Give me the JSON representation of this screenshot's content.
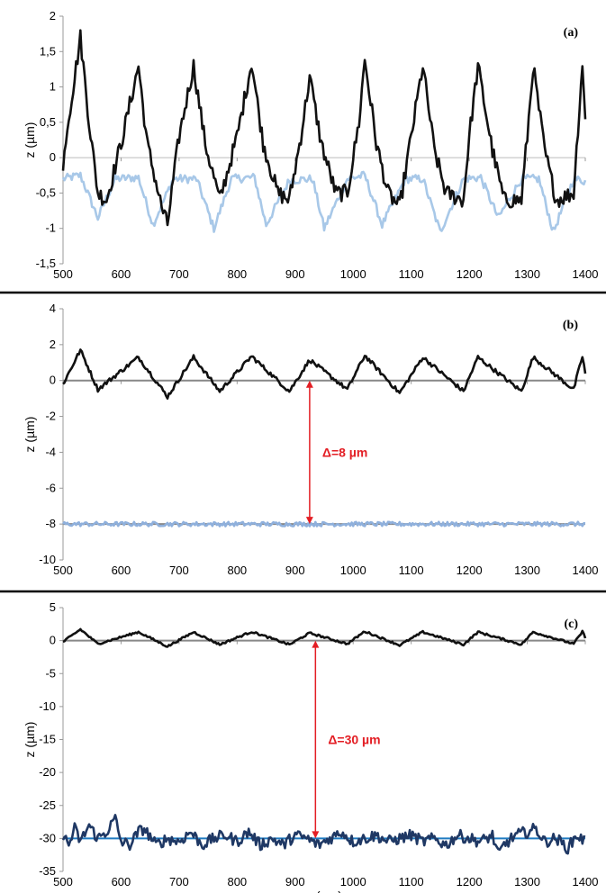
{
  "chart_data": [
    {
      "type": "line",
      "panel_label": "(a)",
      "ylabel": "z (µm)",
      "xlabel": "",
      "xlim": [
        500,
        1400
      ],
      "ylim": [
        -1.5,
        2
      ],
      "x_ticks": [
        "500",
        "600",
        "700",
        "800",
        "900",
        "1000",
        "1100",
        "1200",
        "1300",
        "1400"
      ],
      "y_ticks": [
        "-1,5",
        "-1",
        "-0,5",
        "0",
        "0,5",
        "1",
        "1,5",
        "2"
      ],
      "y_tick_values": [
        -1.5,
        -1,
        -0.5,
        0,
        0.5,
        1,
        1.5,
        2
      ],
      "grid": false,
      "series": [
        {
          "color": "#a8c8e8",
          "kind": "profile",
          "period": 97.5,
          "x0": 530,
          "base": -0.32,
          "peak_amp": 0.0,
          "valley_amp": 0.62,
          "valley_offset": 50,
          "noise": 0.06,
          "points": [
            [
              500,
              -0.3
            ],
            [
              530,
              -0.25
            ],
            [
              560,
              -0.85
            ],
            [
              590,
              -0.3
            ],
            [
              630,
              -0.28
            ],
            [
              655,
              -0.95
            ],
            [
              690,
              -0.3
            ],
            [
              730,
              -0.3
            ],
            [
              760,
              -1.0
            ],
            [
              790,
              -0.3
            ],
            [
              830,
              -0.28
            ],
            [
              850,
              -0.95
            ],
            [
              890,
              -0.32
            ],
            [
              930,
              -0.3
            ],
            [
              950,
              -1.0
            ],
            [
              990,
              -0.3
            ],
            [
              1020,
              -0.25
            ],
            [
              1050,
              -0.95
            ],
            [
              1090,
              -0.3
            ],
            [
              1120,
              -0.3
            ],
            [
              1150,
              -1.05
            ],
            [
              1190,
              -0.3
            ],
            [
              1220,
              -0.28
            ],
            [
              1250,
              -0.85
            ],
            [
              1290,
              -0.3
            ],
            [
              1320,
              -0.3
            ],
            [
              1345,
              -1.05
            ],
            [
              1380,
              -0.3
            ],
            [
              1400,
              -0.33
            ]
          ]
        },
        {
          "color": "#111111",
          "kind": "profile",
          "period": 97.5,
          "x0": 530,
          "base": -0.3,
          "peak_amp": 1.65,
          "valley_amp": 0.45,
          "valley_offset": 45,
          "noise": 0.12,
          "points": [
            [
              500,
              -0.2
            ],
            [
              505,
              0.3
            ],
            [
              530,
              1.7
            ],
            [
              545,
              0.5
            ],
            [
              560,
              -0.5
            ],
            [
              575,
              -0.6
            ],
            [
              600,
              0.2
            ],
            [
              630,
              1.3
            ],
            [
              645,
              0.2
            ],
            [
              670,
              -0.7
            ],
            [
              680,
              -0.95
            ],
            [
              700,
              0.3
            ],
            [
              725,
              1.3
            ],
            [
              745,
              0.2
            ],
            [
              770,
              -0.6
            ],
            [
              800,
              0.3
            ],
            [
              825,
              1.35
            ],
            [
              845,
              0.2
            ],
            [
              870,
              -0.5
            ],
            [
              890,
              -0.6
            ],
            [
              910,
              0.3
            ],
            [
              925,
              1.15
            ],
            [
              945,
              0.2
            ],
            [
              970,
              -0.5
            ],
            [
              990,
              -0.5
            ],
            [
              1010,
              0.5
            ],
            [
              1020,
              1.4
            ],
            [
              1040,
              0.2
            ],
            [
              1060,
              -0.5
            ],
            [
              1080,
              -0.7
            ],
            [
              1100,
              0.3
            ],
            [
              1120,
              1.3
            ],
            [
              1140,
              0.1
            ],
            [
              1160,
              -0.5
            ],
            [
              1190,
              -0.6
            ],
            [
              1200,
              0.3
            ],
            [
              1215,
              1.3
            ],
            [
              1240,
              0.1
            ],
            [
              1260,
              -0.6
            ],
            [
              1290,
              -0.6
            ],
            [
              1300,
              0.3
            ],
            [
              1310,
              1.3
            ],
            [
              1330,
              0.1
            ],
            [
              1350,
              -0.6
            ],
            [
              1380,
              -0.5
            ],
            [
              1395,
              1.35
            ],
            [
              1400,
              0.5
            ]
          ]
        }
      ]
    },
    {
      "type": "line",
      "panel_label": "(b)",
      "ylabel": "z (µm)",
      "xlabel": "",
      "xlim": [
        500,
        1400
      ],
      "ylim": [
        -10,
        4
      ],
      "x_ticks": [
        "500",
        "600",
        "700",
        "800",
        "900",
        "1000",
        "1100",
        "1200",
        "1300",
        "1400"
      ],
      "y_ticks": [
        "-10",
        "-8",
        "-6",
        "-4",
        "-2",
        "0",
        "2",
        "4"
      ],
      "y_tick_values": [
        -10,
        -8,
        -6,
        -4,
        -2,
        0,
        2,
        4
      ],
      "grid": false,
      "annotation": {
        "text": "Δ=8 µm",
        "x": 925,
        "y_from": 0,
        "y_to": -8
      },
      "series": [
        {
          "color": "#888888",
          "kind": "flat",
          "level": 0.0,
          "noise": 0.0
        },
        {
          "color": "#111111",
          "kind": "profile",
          "period": 97.5,
          "x0": 530,
          "base": -0.3,
          "peak_amp": 1.65,
          "valley_amp": 0.45,
          "valley_offset": 45,
          "noise": 0.12,
          "points": [
            [
              500,
              -0.2
            ],
            [
              530,
              1.7
            ],
            [
              560,
              -0.5
            ],
            [
              630,
              1.3
            ],
            [
              680,
              -0.9
            ],
            [
              725,
              1.3
            ],
            [
              770,
              -0.6
            ],
            [
              825,
              1.35
            ],
            [
              890,
              -0.6
            ],
            [
              925,
              1.15
            ],
            [
              990,
              -0.5
            ],
            [
              1020,
              1.4
            ],
            [
              1080,
              -0.7
            ],
            [
              1120,
              1.3
            ],
            [
              1190,
              -0.6
            ],
            [
              1215,
              1.3
            ],
            [
              1290,
              -0.6
            ],
            [
              1310,
              1.3
            ],
            [
              1380,
              -0.5
            ],
            [
              1395,
              1.35
            ],
            [
              1400,
              0.4
            ]
          ]
        },
        {
          "color": "#888888",
          "kind": "flat",
          "level": -8.0,
          "noise": 0.0
        },
        {
          "color": "#8fb0dc",
          "kind": "flat",
          "level": -8.0,
          "noise": 0.12
        }
      ]
    },
    {
      "type": "line",
      "panel_label": "(c)",
      "ylabel": "z (µm)",
      "xlabel": "x (µm)",
      "xlim": [
        500,
        1400
      ],
      "ylim": [
        -35,
        5
      ],
      "x_ticks": [
        "500",
        "600",
        "700",
        "800",
        "900",
        "1000",
        "1100",
        "1200",
        "1300",
        "1400"
      ],
      "y_ticks": [
        "-35",
        "-30",
        "-25",
        "-20",
        "-15",
        "-10",
        "-5",
        "0",
        "5"
      ],
      "y_tick_values": [
        -35,
        -30,
        -25,
        -20,
        -15,
        -10,
        -5,
        0,
        5
      ],
      "grid": false,
      "annotation": {
        "text": "Δ=30 µm",
        "x": 935,
        "y_from": 0,
        "y_to": -30
      },
      "series": [
        {
          "color": "#888888",
          "kind": "flat",
          "level": 0.0,
          "noise": 0.0
        },
        {
          "color": "#111111",
          "kind": "profile",
          "period": 97.5,
          "x0": 530,
          "base": -0.3,
          "peak_amp": 1.65,
          "valley_amp": 0.45,
          "valley_offset": 45,
          "noise": 0.15,
          "points": [
            [
              500,
              -0.2
            ],
            [
              530,
              1.7
            ],
            [
              560,
              -0.5
            ],
            [
              630,
              1.3
            ],
            [
              680,
              -0.9
            ],
            [
              725,
              1.3
            ],
            [
              770,
              -0.6
            ],
            [
              825,
              1.35
            ],
            [
              890,
              -0.6
            ],
            [
              925,
              1.15
            ],
            [
              990,
              -0.5
            ],
            [
              1020,
              1.4
            ],
            [
              1080,
              -0.7
            ],
            [
              1120,
              1.3
            ],
            [
              1190,
              -0.6
            ],
            [
              1215,
              1.3
            ],
            [
              1290,
              -0.6
            ],
            [
              1310,
              1.3
            ],
            [
              1380,
              -0.5
            ],
            [
              1395,
              1.35
            ],
            [
              1400,
              0.5
            ]
          ]
        },
        {
          "color": "#1f7ac0",
          "kind": "flat",
          "level": -30.0,
          "noise": 0.0
        },
        {
          "color": "#1f3864",
          "kind": "rough",
          "level": -30.0,
          "noise": 0.9,
          "points": [
            [
              500,
              -29.5
            ],
            [
              510,
              -31
            ],
            [
              520,
              -28.5
            ],
            [
              530,
              -30.5
            ],
            [
              545,
              -28
            ],
            [
              560,
              -30
            ],
            [
              575,
              -29
            ],
            [
              590,
              -27
            ],
            [
              600,
              -30.5
            ],
            [
              615,
              -31
            ],
            [
              630,
              -29
            ],
            [
              640,
              -28.5
            ],
            [
              660,
              -31
            ],
            [
              680,
              -30
            ],
            [
              700,
              -30.5
            ],
            [
              720,
              -29
            ],
            [
              740,
              -31
            ],
            [
              760,
              -30
            ],
            [
              780,
              -29.5
            ],
            [
              800,
              -30.5
            ],
            [
              820,
              -29
            ],
            [
              840,
              -31
            ],
            [
              860,
              -30
            ],
            [
              880,
              -31
            ],
            [
              900,
              -29.5
            ],
            [
              920,
              -30
            ],
            [
              940,
              -31
            ],
            [
              960,
              -30
            ],
            [
              980,
              -29
            ],
            [
              1000,
              -30.5
            ],
            [
              1020,
              -30
            ],
            [
              1040,
              -29.5
            ],
            [
              1060,
              -30.5
            ],
            [
              1080,
              -30
            ],
            [
              1100,
              -29.5
            ],
            [
              1120,
              -30.5
            ],
            [
              1140,
              -30
            ],
            [
              1160,
              -31
            ],
            [
              1180,
              -29.5
            ],
            [
              1200,
              -30
            ],
            [
              1220,
              -30.5
            ],
            [
              1240,
              -29.5
            ],
            [
              1250,
              -32.5
            ],
            [
              1260,
              -31
            ],
            [
              1280,
              -29.5
            ],
            [
              1300,
              -29
            ],
            [
              1315,
              -28.5
            ],
            [
              1330,
              -30.5
            ],
            [
              1350,
              -30
            ],
            [
              1370,
              -31.5
            ],
            [
              1385,
              -29.5
            ],
            [
              1400,
              -30.5
            ]
          ]
        }
      ]
    }
  ]
}
